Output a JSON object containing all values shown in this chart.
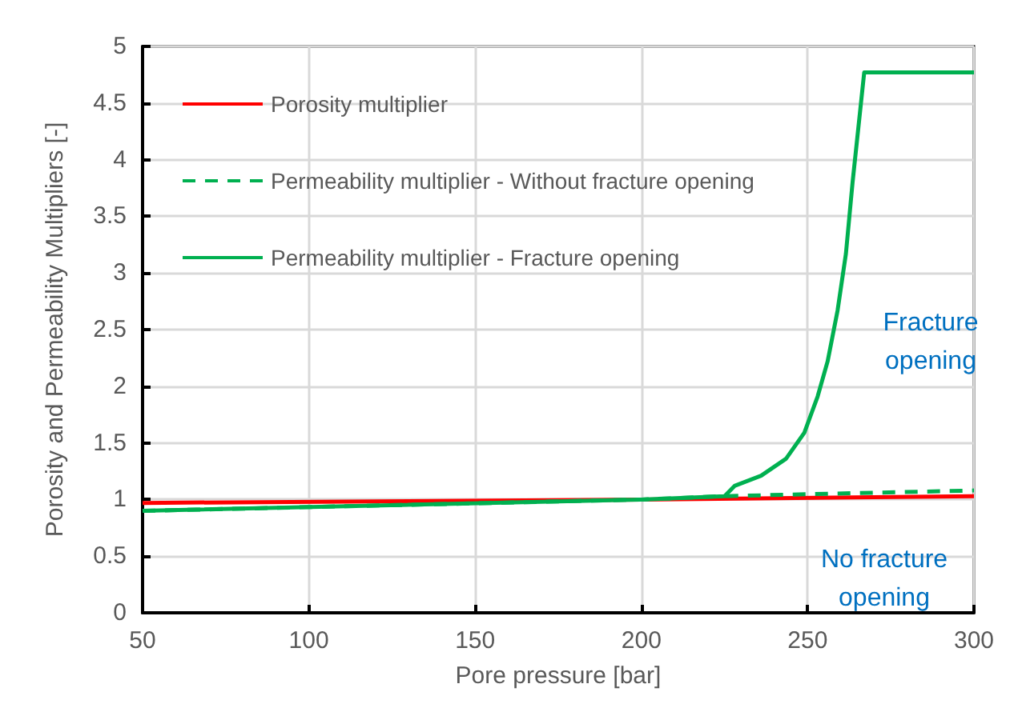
{
  "chart_data": {
    "type": "line",
    "xlabel": "Pore pressure [bar]",
    "ylabel": "Porosity and Permeability Multipliers [-]",
    "xlim": [
      50,
      300
    ],
    "xticks": [
      50,
      100,
      150,
      200,
      250,
      300
    ],
    "ylim": [
      0,
      5
    ],
    "yticks": [
      0,
      0.5,
      1,
      1.5,
      2,
      2.5,
      3,
      3.5,
      4,
      4.5,
      5
    ],
    "grid": true,
    "legend": "top left",
    "marker": "none",
    "series": [
      {
        "name": "Porosity multiplier",
        "color": "#ff0000",
        "line_style": "solid",
        "x": [
          50,
          200,
          300
        ],
        "values": [
          0.97,
          1.0,
          1.03
        ]
      },
      {
        "name": "Permeability multiplier - Without fracture opening",
        "color": "#00b050",
        "line_style": "dashed",
        "x": [
          50,
          200,
          225,
          300
        ],
        "values": [
          0.9,
          1.0,
          1.03,
          1.08
        ]
      },
      {
        "name": "Permeability multiplier - Fracture opening",
        "color": "#00b050",
        "line_style": "solid",
        "x": [
          50,
          200,
          225,
          228,
          236,
          243.5,
          249,
          253,
          256,
          259,
          261.5,
          263.5,
          267,
          300
        ],
        "values": [
          0.9,
          1.0,
          1.03,
          1.12,
          1.21,
          1.36,
          1.59,
          1.91,
          2.22,
          2.67,
          3.17,
          3.8,
          4.77,
          4.77
        ]
      }
    ],
    "annotations": [
      "Fracture opening",
      "No fracture opening"
    ]
  }
}
